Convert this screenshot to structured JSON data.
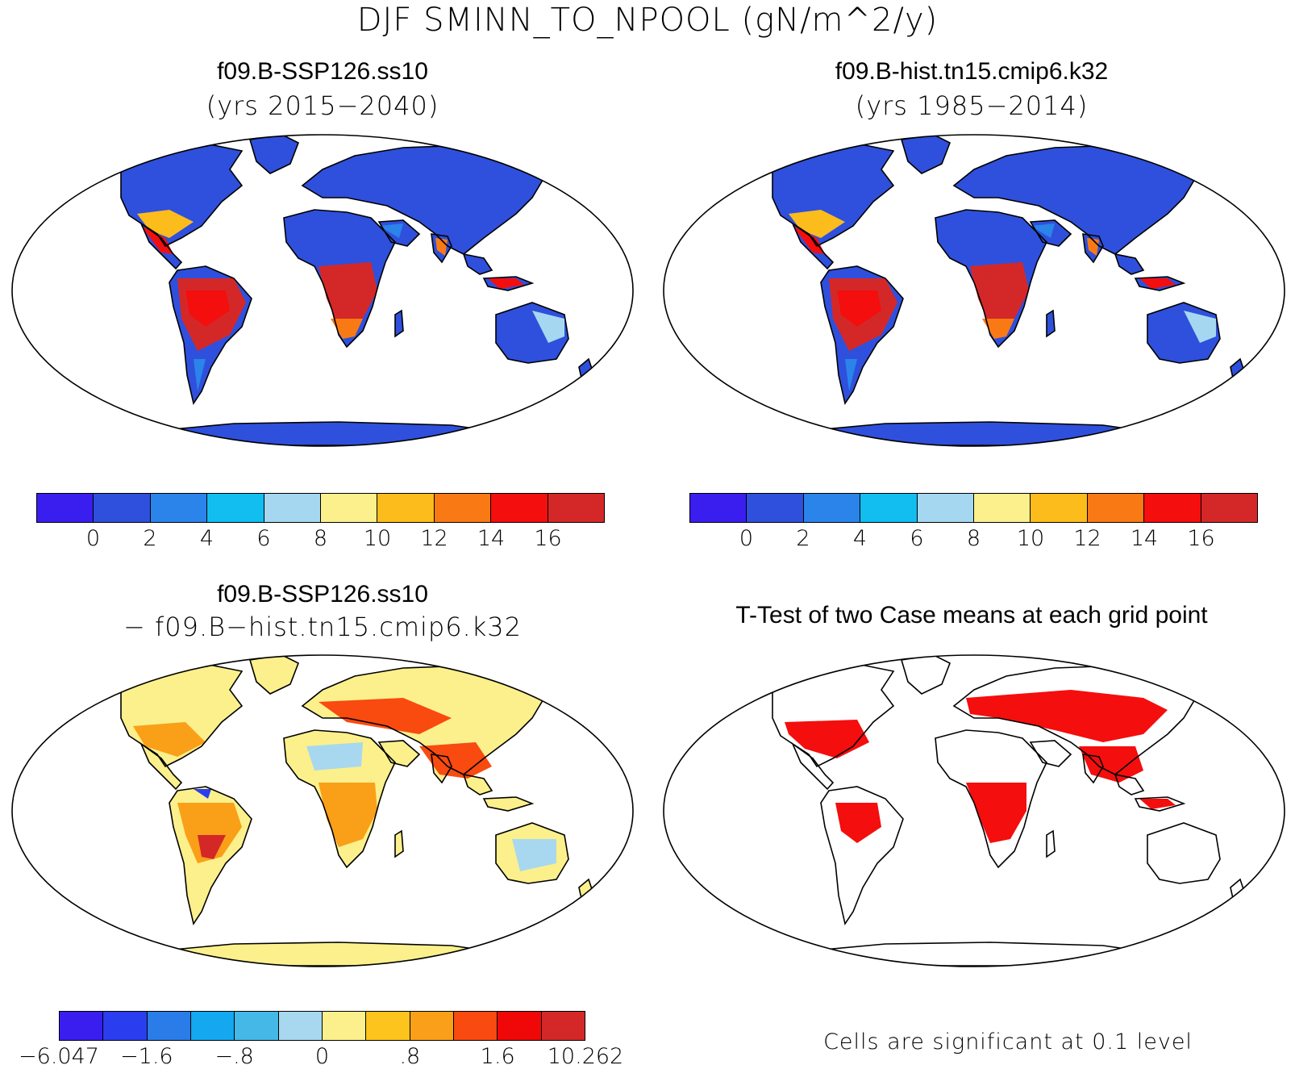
{
  "figure": {
    "title": "DJF SMINN_TO_NPOOL (gN/m^2/y)"
  },
  "panels": [
    {
      "id": "case1",
      "title": "f09.B-SSP126.ss10",
      "subtitle": "(yrs 2015−2040)"
    },
    {
      "id": "case2",
      "title": "f09.B-hist.tn15.cmip6.k32",
      "subtitle": "(yrs 1985−2014)"
    },
    {
      "id": "diff",
      "title": "f09.B-SSP126.ss10",
      "subtitle": "− f09.B−hist.tn15.cmip6.k32"
    },
    {
      "id": "ttest",
      "title": "T-Test of two Case means at each grid point",
      "note": "Cells are significant at 0.1 level"
    }
  ],
  "colorbars": {
    "abs": {
      "colors": [
        "#3a1ef0",
        "#2f50dc",
        "#2a84ea",
        "#12bdf0",
        "#a5d8f0",
        "#fcf08c",
        "#fcbc1c",
        "#f97a14",
        "#f40e0e",
        "#d42828"
      ],
      "labels": [
        "0",
        "2",
        "4",
        "6",
        "8",
        "10",
        "12",
        "14",
        "16"
      ]
    },
    "diff": {
      "colors": [
        "#3a1ef0",
        "#2a3ef0",
        "#2a7ce8",
        "#14a8f0",
        "#44b8e6",
        "#a8d8f0",
        "#fcf08c",
        "#fcc41c",
        "#f9a018",
        "#f94a10",
        "#f00808",
        "#d42828"
      ],
      "labels": [
        "−6.047",
        "−1.6",
        "−.8",
        "0",
        ".8",
        "1.6",
        "10.262"
      ]
    }
  },
  "map_colors": {
    "ocean": "#ffffff",
    "outline": "#000000",
    "significant": "#f40e0e"
  }
}
